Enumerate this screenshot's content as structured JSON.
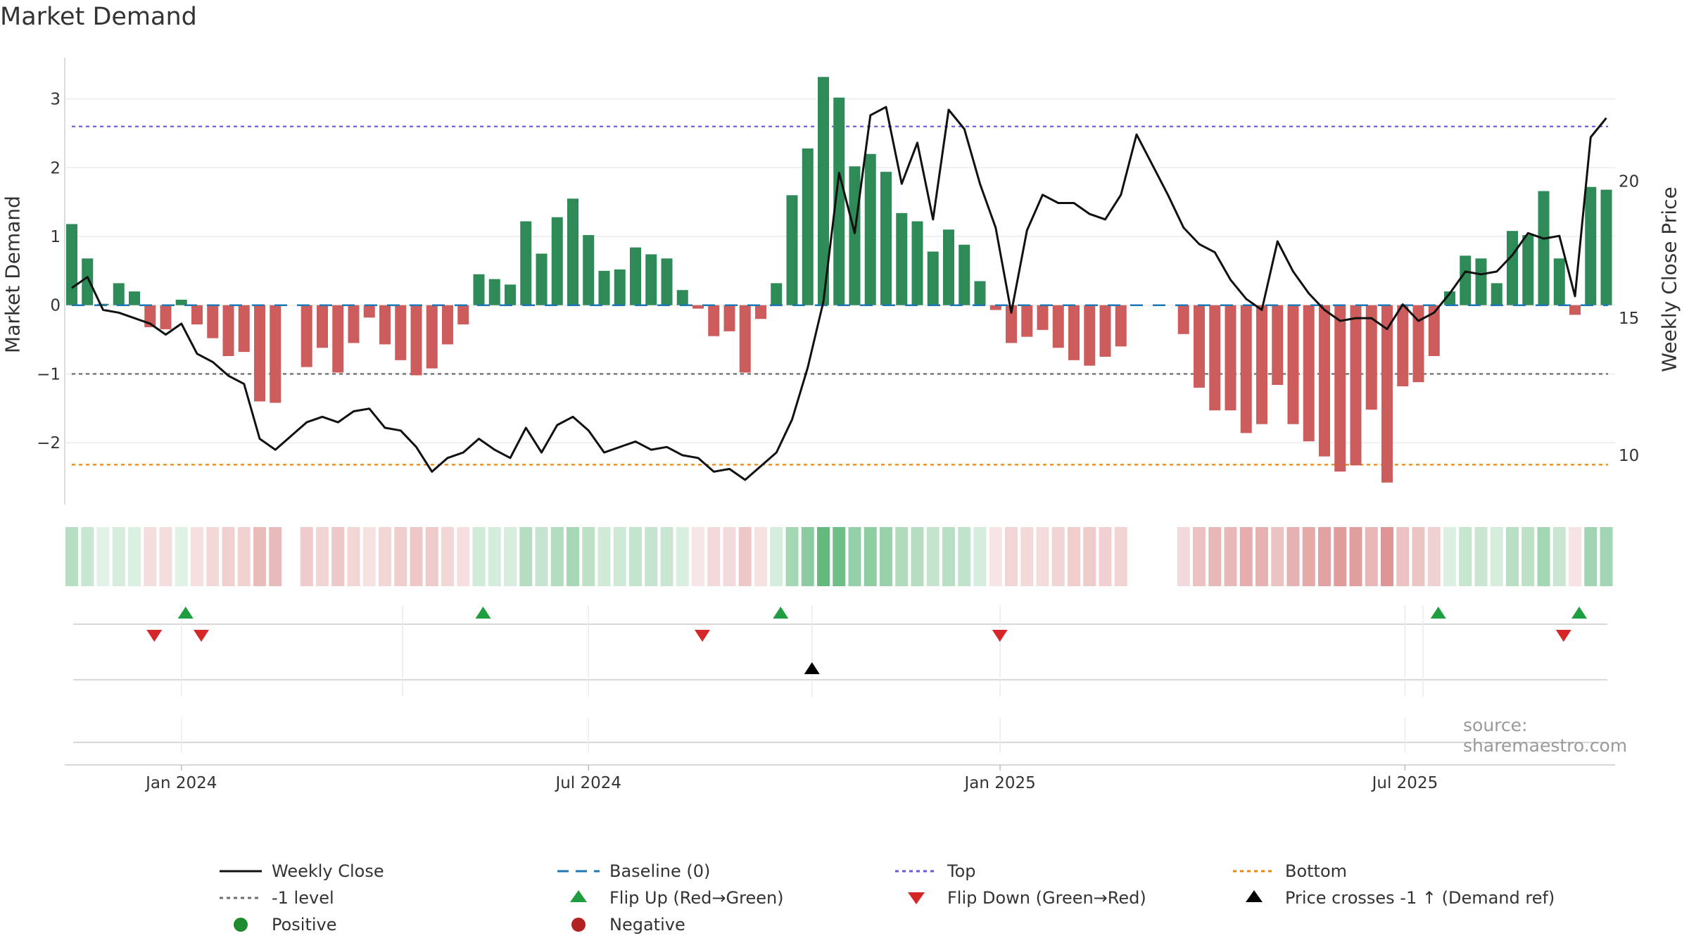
{
  "title": "Market Demand",
  "source": "source: sharemaestro.com",
  "colors": {
    "positive_bar": "#2e8b57",
    "negative_bar": "#cd5c5c",
    "price_line": "#111111",
    "baseline": "#1f77b4",
    "top_line": "#6a5acd",
    "minus1_line": "#6b6b6b",
    "bottom_line": "#e08a1e",
    "flip_up": "#1e9e3e",
    "flip_down": "#d62728",
    "cross_marker": "#000000",
    "positive_dot": "#1e8c2e",
    "negative_dot": "#b22222"
  },
  "chart_data": {
    "type": "bar+line",
    "title": "Market Demand",
    "ylabel_left": "Market Demand",
    "ylabel_right": "Weekly Close Price",
    "left_ylim": [
      -2.9,
      3.6
    ],
    "left_ticks": [
      3,
      2,
      1,
      0,
      -1,
      -2
    ],
    "left_tick_labels": [
      "3",
      "2",
      "1",
      "0",
      "−1",
      "−2"
    ],
    "right_ylim": [
      8.2,
      24.5
    ],
    "right_ticks": [
      20,
      15,
      10
    ],
    "right_tick_labels": [
      "20",
      "15",
      "10"
    ],
    "x_start": "2023-11-13",
    "x_tick_labels": [
      {
        "date": "2024-01-01",
        "label": "Jan 2024"
      },
      {
        "date": "2024-07-01",
        "label": "Jul 2024"
      },
      {
        "date": "2025-01-01",
        "label": "Jan 2025"
      },
      {
        "date": "2025-07-01",
        "label": "Jul 2025"
      }
    ],
    "reference_lines": {
      "baseline": 0,
      "top": 2.6,
      "minus1": -1,
      "bottom": -2.32
    },
    "demand": [
      1.18,
      0.68,
      0.02,
      0.32,
      0.2,
      -0.32,
      -0.35,
      0.08,
      -0.28,
      -0.48,
      -0.74,
      -0.68,
      -1.4,
      -1.42,
      null,
      -0.9,
      -0.62,
      -0.98,
      -0.55,
      -0.18,
      -0.57,
      -0.8,
      -1.02,
      -0.92,
      -0.57,
      -0.28,
      0.45,
      0.38,
      0.3,
      1.22,
      0.75,
      1.28,
      1.55,
      1.02,
      0.5,
      0.52,
      0.84,
      0.74,
      0.68,
      0.22,
      -0.05,
      -0.45,
      -0.38,
      -0.98,
      -0.2,
      0.32,
      1.6,
      2.28,
      3.32,
      3.02,
      2.02,
      2.2,
      1.94,
      1.34,
      1.22,
      0.78,
      1.1,
      0.88,
      0.35,
      -0.07,
      -0.55,
      -0.46,
      -0.36,
      -0.62,
      -0.8,
      -0.88,
      -0.75,
      -0.6,
      null,
      null,
      null,
      -0.42,
      -1.2,
      -1.53,
      -1.53,
      -1.86,
      -1.73,
      -1.16,
      -1.73,
      -1.98,
      -2.2,
      -2.42,
      -2.33,
      -1.52,
      -2.58,
      -1.18,
      -1.12,
      -0.74,
      0.2,
      0.72,
      0.68,
      0.32,
      1.08,
      1.02,
      1.66,
      0.68,
      -0.14,
      1.72,
      1.68
    ],
    "weekly_close": [
      16.1,
      16.5,
      15.3,
      15.2,
      15.0,
      14.8,
      14.4,
      14.8,
      13.7,
      13.4,
      12.9,
      12.6,
      10.6,
      10.2,
      10.7,
      11.2,
      11.4,
      11.2,
      11.6,
      11.7,
      11.0,
      10.9,
      10.3,
      9.4,
      9.9,
      10.1,
      10.6,
      10.2,
      9.9,
      11.0,
      10.1,
      11.1,
      11.4,
      10.9,
      10.1,
      10.3,
      10.5,
      10.2,
      10.3,
      10.0,
      9.9,
      9.4,
      9.5,
      9.1,
      9.6,
      10.1,
      11.3,
      13.2,
      15.6,
      20.3,
      18.1,
      22.4,
      22.7,
      19.9,
      21.4,
      18.6,
      22.6,
      21.9,
      19.9,
      18.3,
      15.2,
      18.2,
      19.5,
      19.2,
      19.2,
      18.8,
      18.6,
      19.5,
      21.7,
      20.6,
      19.5,
      18.3,
      17.7,
      17.4,
      16.4,
      15.7,
      15.3,
      17.8,
      16.7,
      15.9,
      15.3,
      14.9,
      15.0,
      15.0,
      14.6,
      15.5,
      14.9,
      15.2,
      15.9,
      16.7,
      16.6,
      16.7,
      17.3,
      18.1,
      17.9,
      18.0,
      15.8,
      21.6,
      22.3
    ],
    "flip_up_weeks": [
      7,
      26,
      45,
      87,
      96
    ],
    "flip_down_weeks": [
      5,
      8,
      40,
      59,
      95
    ],
    "price_cross_weeks": [
      47
    ]
  },
  "legend": [
    {
      "key": "weekly_close",
      "label": "Weekly Close"
    },
    {
      "key": "baseline",
      "label": "Baseline (0)"
    },
    {
      "key": "top",
      "label": "Top"
    },
    {
      "key": "bottom",
      "label": "Bottom"
    },
    {
      "key": "minus1",
      "label": "-1 level"
    },
    {
      "key": "flip_up",
      "label": "Flip Up (Red→Green)"
    },
    {
      "key": "flip_down",
      "label": "Flip Down (Green→Red)"
    },
    {
      "key": "price_cross",
      "label": "Price crosses -1 ↑ (Demand ref)"
    },
    {
      "key": "positive",
      "label": "Positive"
    },
    {
      "key": "negative",
      "label": "Negative"
    }
  ]
}
